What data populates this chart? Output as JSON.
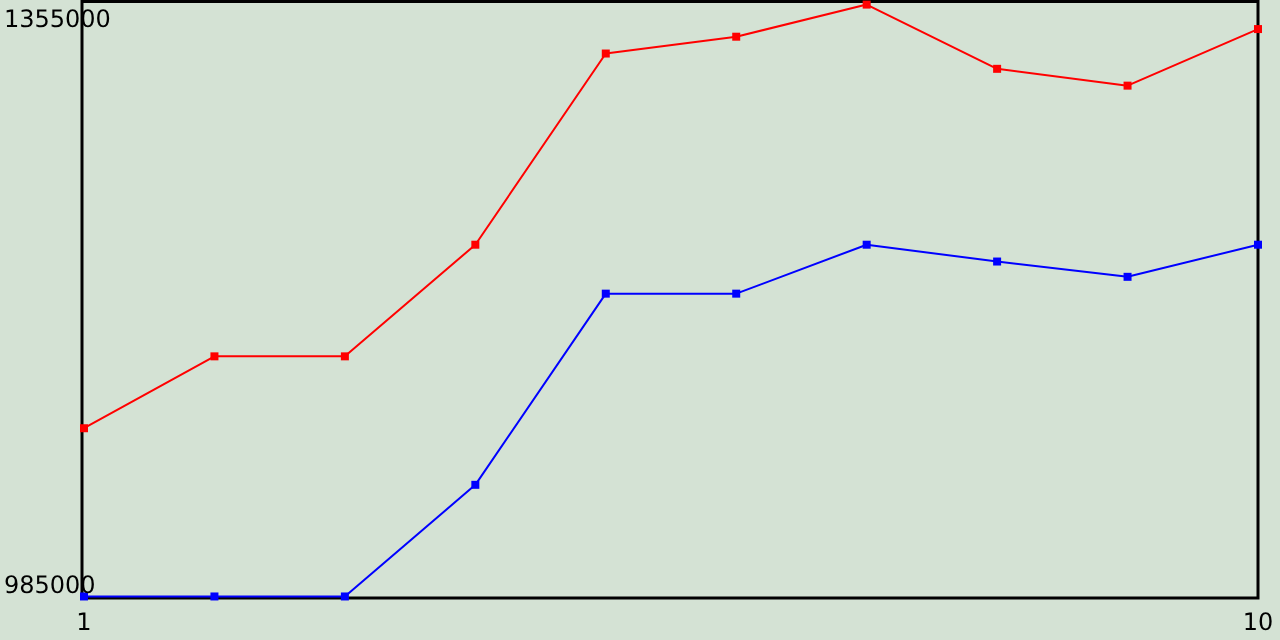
{
  "chart_data": {
    "type": "line",
    "x": [
      1,
      2,
      3,
      4,
      5,
      6,
      7,
      8,
      9,
      10
    ],
    "xlim": [
      1,
      10
    ],
    "xticks": [
      1,
      10
    ],
    "ylim": [
      976000,
      1367000
    ],
    "yticks": [
      985000,
      1355000
    ],
    "marker": "square",
    "grid": false,
    "series": [
      {
        "color": "#ff0000",
        "values": [
          1087000,
          1134000,
          1134000,
          1207000,
          1332000,
          1343000,
          1364000,
          1322000,
          1311000,
          1348000
        ]
      },
      {
        "color": "#0000ff",
        "values": [
          977000,
          977000,
          977000,
          1050000,
          1175000,
          1175000,
          1207000,
          1196000,
          1186000,
          1207000
        ]
      }
    ]
  }
}
